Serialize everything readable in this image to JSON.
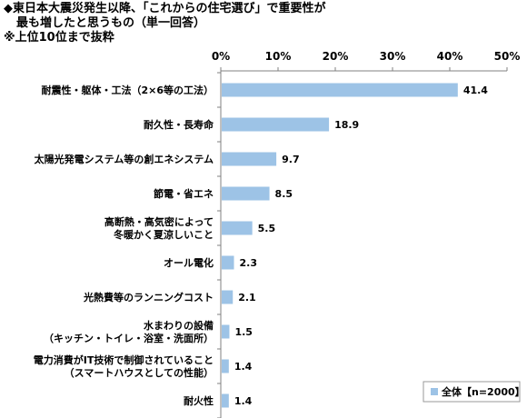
{
  "title": {
    "line1": "◆東日本大震災発生以降、「これからの住宅選び」で重要性が",
    "line2": "最も増したと思うもの（単一回答）",
    "note": "※上位10位まで抜粋"
  },
  "chart_data": {
    "type": "bar",
    "orientation": "horizontal",
    "categories": [
      [
        "耐震性・躯体・工法（2×6等の工法）"
      ],
      [
        "耐久性・長寿命"
      ],
      [
        "太陽光発電システム等の創エネシステム"
      ],
      [
        "節電・省エネ"
      ],
      [
        "高断熱・高気密によって",
        "冬暖かく夏涼しいこと"
      ],
      [
        "オール電化"
      ],
      [
        "光熱費等のランニングコスト"
      ],
      [
        "水まわりの設備",
        "（キッチン・トイレ・浴室・洗面所）"
      ],
      [
        "電力消費がIT技術で制御されていること",
        "（スマートハウスとしての性能）"
      ],
      [
        "耐火性"
      ]
    ],
    "series": [
      {
        "name": "全体【n=2000】",
        "values": [
          41.4,
          18.9,
          9.7,
          8.5,
          5.5,
          2.3,
          2.1,
          1.5,
          1.4,
          1.4
        ]
      }
    ],
    "value_labels": [
      "41.4",
      "18.9",
      "9.7",
      "8.5",
      "5.5",
      "2.3",
      "2.1",
      "1.5",
      "1.4",
      "1.4"
    ],
    "xlim": [
      0,
      50
    ],
    "ticks": [
      "0%",
      "10%",
      "20%",
      "30%",
      "40%",
      "50%"
    ],
    "tick_values": [
      0,
      10,
      20,
      30,
      40,
      50
    ],
    "grid": false,
    "legend_position": "bottom-right",
    "colors": {
      "bar": "#9dc3e6",
      "axis": "#808080",
      "legend_border": "#999999"
    }
  }
}
